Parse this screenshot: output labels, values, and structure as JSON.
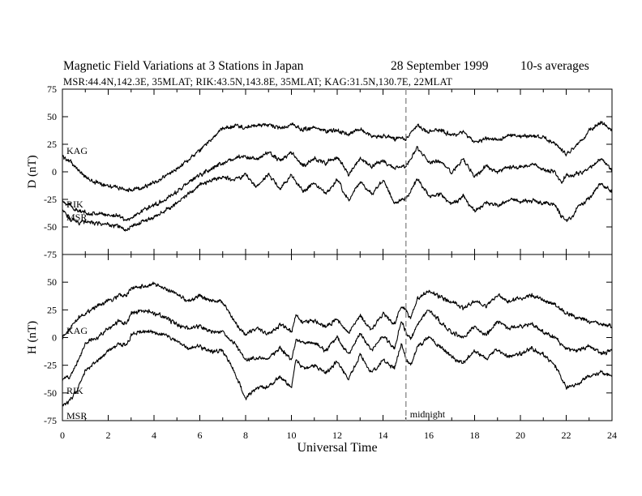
{
  "header": {
    "title": "Magnetic Field Variations at 3 Stations in Japan",
    "date": "28 September 1999",
    "averaging": "10-s averages",
    "stations": "MSR:44.4N,142.3E, 35MLAT;   RIK:43.5N,143.8E, 35MLAT;   KAG:31.5N,130.7E, 22MLAT"
  },
  "chart_data": [
    {
      "type": "line",
      "ylabel": "D (nT)",
      "ylim": [
        -75,
        75
      ],
      "yticks": [
        75,
        50,
        25,
        0,
        -25,
        -50,
        -75
      ],
      "series": [
        {
          "name": "KAG",
          "x": [
            0,
            0.3,
            0.7,
            1,
            1.5,
            2,
            2.5,
            2.8,
            3,
            3.5,
            4,
            4.5,
            5,
            5.5,
            6,
            6.5,
            7,
            7.5,
            8,
            8.5,
            9,
            9.5,
            10,
            10.5,
            11,
            11.5,
            12,
            12.5,
            13,
            13.5,
            14,
            14.5,
            15,
            15.3,
            15.5,
            16,
            16.5,
            17,
            17.5,
            18,
            18.5,
            19,
            19.5,
            20,
            20.5,
            21,
            21.5,
            21.8,
            22,
            22.3,
            22.5,
            23,
            23.5,
            24
          ],
          "values": [
            14,
            10,
            2,
            -5,
            -10,
            -12,
            -15,
            -16,
            -17,
            -14,
            -10,
            -4,
            3,
            11,
            19,
            30,
            39,
            42,
            40,
            42,
            43,
            39,
            43,
            38,
            40,
            37,
            38,
            34,
            39,
            33,
            32,
            30,
            30,
            38,
            42,
            36,
            38,
            33,
            36,
            26,
            30,
            29,
            33,
            32,
            33,
            31,
            26,
            20,
            16,
            20,
            25,
            37,
            45,
            38
          ]
        },
        {
          "name": "RIK",
          "x": [
            0,
            0.3,
            0.7,
            1,
            1.5,
            2,
            2.5,
            2.8,
            3,
            3.5,
            4,
            4.5,
            5,
            5.5,
            6,
            6.5,
            7,
            7.5,
            8,
            8.5,
            9,
            9.5,
            10,
            10.5,
            11,
            11.5,
            12,
            12.5,
            13,
            13.5,
            14,
            14.5,
            15,
            15.3,
            15.5,
            16,
            16.5,
            17,
            17.5,
            18,
            18.5,
            19,
            19.5,
            20,
            20.5,
            21,
            21.5,
            21.8,
            22,
            22.3,
            22.5,
            23,
            23.5,
            24
          ],
          "values": [
            -26,
            -30,
            -36,
            -37,
            -38,
            -39,
            -40,
            -44,
            -42,
            -35,
            -30,
            -25,
            -18,
            -10,
            -3,
            3,
            8,
            12,
            14,
            11,
            18,
            10,
            18,
            5,
            12,
            8,
            13,
            -2,
            12,
            5,
            10,
            3,
            5,
            15,
            22,
            8,
            10,
            -1,
            12,
            -5,
            5,
            0,
            5,
            4,
            7,
            2,
            0,
            -10,
            -2,
            -4,
            -2,
            4,
            12,
            2
          ]
        },
        {
          "name": "MSR",
          "x": [
            0,
            0.3,
            0.7,
            1,
            1.5,
            2,
            2.5,
            2.8,
            3,
            3.5,
            4,
            4.5,
            5,
            5.5,
            6,
            6.5,
            7,
            7.5,
            8,
            8.5,
            9,
            9.5,
            10,
            10.5,
            11,
            11.5,
            12,
            12.5,
            13,
            13.5,
            14,
            14.5,
            15,
            15.3,
            15.5,
            16,
            16.5,
            17,
            17.5,
            18,
            18.5,
            19,
            19.5,
            20,
            20.5,
            21,
            21.5,
            21.8,
            22,
            22.3,
            22.5,
            23,
            23.5,
            24
          ],
          "values": [
            -35,
            -42,
            -46,
            -45,
            -47,
            -48,
            -50,
            -54,
            -50,
            -45,
            -41,
            -35,
            -28,
            -20,
            -12,
            -8,
            -4,
            -8,
            -2,
            -14,
            -2,
            -15,
            -3,
            -18,
            -10,
            -20,
            -7,
            -26,
            -9,
            -20,
            -8,
            -28,
            -24,
            -14,
            -6,
            -22,
            -20,
            -30,
            -22,
            -36,
            -28,
            -30,
            -26,
            -27,
            -26,
            -28,
            -30,
            -40,
            -44,
            -40,
            -32,
            -25,
            -10,
            -18
          ]
        }
      ]
    },
    {
      "type": "line",
      "ylabel": "H (nT)",
      "ylim": [
        -75,
        75
      ],
      "yticks": [
        50,
        25,
        0,
        -25,
        -50,
        -75
      ],
      "series": [
        {
          "name": "KAG",
          "x": [
            0,
            0.3,
            0.7,
            1,
            1.5,
            2,
            2.5,
            2.8,
            3,
            3.5,
            4,
            4.5,
            5,
            5.5,
            6,
            6.5,
            7,
            7.5,
            8,
            8.5,
            9,
            9.5,
            10,
            10.2,
            10.5,
            11,
            11.5,
            12,
            12.5,
            13,
            13.5,
            14,
            14.5,
            14.8,
            15,
            15.2,
            15.5,
            16,
            16.5,
            17,
            17.5,
            18,
            18.5,
            19,
            19.5,
            20,
            20.5,
            21,
            21.5,
            22,
            22.5,
            23,
            23.5,
            24
          ],
          "values": [
            0,
            8,
            18,
            22,
            28,
            33,
            38,
            38,
            44,
            46,
            48,
            44,
            39,
            33,
            38,
            33,
            32,
            15,
            2,
            8,
            3,
            12,
            5,
            20,
            14,
            15,
            10,
            16,
            4,
            20,
            6,
            22,
            12,
            28,
            25,
            18,
            35,
            42,
            36,
            32,
            26,
            33,
            28,
            38,
            33,
            35,
            38,
            34,
            30,
            22,
            18,
            15,
            12,
            10
          ]
        },
        {
          "name": "RIK",
          "x": [
            0,
            0.3,
            0.7,
            1,
            1.5,
            2,
            2.5,
            2.8,
            3,
            3.5,
            4,
            4.5,
            5,
            5.5,
            6,
            6.5,
            7,
            7.5,
            8,
            8.5,
            9,
            9.5,
            10,
            10.2,
            10.5,
            11,
            11.5,
            12,
            12.5,
            13,
            13.5,
            14,
            14.5,
            14.8,
            15,
            15.2,
            15.5,
            16,
            16.5,
            17,
            17.5,
            18,
            18.5,
            19,
            19.5,
            20,
            20.5,
            21,
            21.5,
            22,
            22.5,
            23,
            23.5,
            24
          ],
          "values": [
            -38,
            -35,
            -20,
            -5,
            0,
            8,
            15,
            12,
            22,
            24,
            22,
            18,
            12,
            8,
            10,
            5,
            5,
            -5,
            -20,
            -18,
            -18,
            -10,
            -20,
            -2,
            -5,
            -5,
            -12,
            0,
            -15,
            4,
            -12,
            2,
            -10,
            15,
            5,
            -2,
            12,
            25,
            14,
            5,
            0,
            10,
            2,
            15,
            8,
            10,
            12,
            5,
            0,
            -10,
            -12,
            -8,
            -14,
            -12
          ]
        },
        {
          "name": "MSR",
          "x": [
            0,
            0.3,
            0.7,
            1,
            1.5,
            2,
            2.5,
            2.8,
            3,
            3.5,
            4,
            4.5,
            5,
            5.5,
            6,
            6.5,
            7,
            7.5,
            8,
            8.5,
            9,
            9.5,
            10,
            10.2,
            10.5,
            11,
            11.5,
            12,
            12.5,
            13,
            13.5,
            14,
            14.5,
            14.8,
            15,
            15.2,
            15.5,
            16,
            16.5,
            17,
            17.5,
            18,
            18.5,
            19,
            19.5,
            20,
            20.5,
            21,
            21.5,
            22,
            22.5,
            23,
            23.5,
            24
          ],
          "values": [
            -60,
            -58,
            -45,
            -30,
            -22,
            -12,
            -5,
            -8,
            2,
            6,
            5,
            2,
            -4,
            -10,
            -8,
            -12,
            -12,
            -30,
            -55,
            -45,
            -45,
            -35,
            -45,
            -20,
            -28,
            -25,
            -32,
            -22,
            -38,
            -15,
            -32,
            -20,
            -28,
            -5,
            -20,
            -25,
            -8,
            0,
            -8,
            -18,
            -22,
            -12,
            -20,
            -10,
            -18,
            -14,
            -10,
            -15,
            -25,
            -45,
            -42,
            -35,
            -32,
            -35
          ]
        }
      ]
    }
  ],
  "x_axis": {
    "label": "Universal Time",
    "xlim": [
      0,
      24
    ],
    "ticks": [
      0,
      2,
      4,
      6,
      8,
      10,
      12,
      14,
      16,
      18,
      20,
      22,
      24
    ]
  },
  "annotation": {
    "text": "midnight",
    "x": 15
  }
}
